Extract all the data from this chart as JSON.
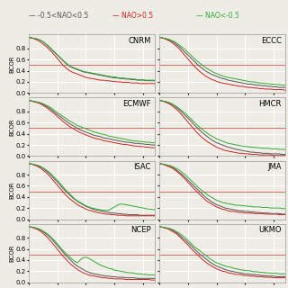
{
  "models": [
    "CNRM",
    "ECCC",
    "ECMWF",
    "HMCR",
    "ISAC",
    "JMA",
    "NCEP",
    "UKMO"
  ],
  "legend_labels": [
    "-0.5<NAO<0.5",
    "NAO>0.5",
    "NAO<-0.5"
  ],
  "line_colors": [
    "#555555",
    "#cc2222",
    "#33aa33"
  ],
  "ylabel": "BCOR",
  "ylim": [
    0.0,
    1.0
  ],
  "yticks": [
    0.0,
    0.2,
    0.4,
    0.6,
    0.8
  ],
  "ref_line_y": 0.5,
  "ref_line_color": "#cc3333",
  "lead_times": [
    0,
    1,
    2,
    3,
    4,
    5,
    6,
    7,
    8,
    9,
    10,
    11,
    12,
    13,
    14,
    15,
    16,
    17,
    18,
    19,
    20,
    21,
    22,
    23,
    24,
    25,
    26,
    27,
    28,
    29,
    30,
    31,
    32,
    33,
    34,
    35,
    36,
    37,
    38,
    39,
    40,
    41,
    42,
    43,
    44
  ],
  "curves": {
    "CNRM": {
      "black": [
        1.0,
        0.99,
        0.98,
        0.97,
        0.95,
        0.92,
        0.88,
        0.83,
        0.78,
        0.73,
        0.68,
        0.63,
        0.58,
        0.53,
        0.49,
        0.46,
        0.44,
        0.42,
        0.4,
        0.38,
        0.37,
        0.36,
        0.35,
        0.34,
        0.33,
        0.32,
        0.31,
        0.3,
        0.29,
        0.28,
        0.27,
        0.27,
        0.26,
        0.26,
        0.25,
        0.25,
        0.24,
        0.24,
        0.23,
        0.23,
        0.23,
        0.22,
        0.22,
        0.22,
        0.22
      ],
      "red": [
        1.0,
        0.99,
        0.97,
        0.95,
        0.92,
        0.88,
        0.84,
        0.79,
        0.74,
        0.68,
        0.62,
        0.56,
        0.5,
        0.45,
        0.41,
        0.38,
        0.36,
        0.34,
        0.32,
        0.3,
        0.28,
        0.27,
        0.26,
        0.25,
        0.24,
        0.23,
        0.23,
        0.22,
        0.22,
        0.21,
        0.21,
        0.2,
        0.2,
        0.19,
        0.19,
        0.19,
        0.18,
        0.18,
        0.18,
        0.17,
        0.17,
        0.17,
        0.17,
        0.17,
        0.17
      ],
      "green": [
        1.0,
        0.99,
        0.98,
        0.97,
        0.95,
        0.92,
        0.88,
        0.84,
        0.79,
        0.74,
        0.69,
        0.64,
        0.59,
        0.54,
        0.5,
        0.47,
        0.45,
        0.43,
        0.41,
        0.39,
        0.38,
        0.37,
        0.36,
        0.35,
        0.34,
        0.33,
        0.32,
        0.31,
        0.3,
        0.29,
        0.29,
        0.28,
        0.27,
        0.27,
        0.26,
        0.26,
        0.25,
        0.25,
        0.24,
        0.24,
        0.24,
        0.23,
        0.23,
        0.23,
        0.23
      ]
    },
    "ECCC": {
      "black": [
        1.0,
        0.99,
        0.98,
        0.96,
        0.94,
        0.91,
        0.87,
        0.83,
        0.78,
        0.73,
        0.68,
        0.63,
        0.58,
        0.53,
        0.48,
        0.44,
        0.4,
        0.37,
        0.34,
        0.32,
        0.3,
        0.28,
        0.26,
        0.25,
        0.23,
        0.22,
        0.21,
        0.2,
        0.19,
        0.18,
        0.17,
        0.16,
        0.16,
        0.15,
        0.14,
        0.14,
        0.13,
        0.13,
        0.12,
        0.12,
        0.11,
        0.11,
        0.1,
        0.1,
        0.1
      ],
      "red": [
        1.0,
        0.99,
        0.97,
        0.95,
        0.92,
        0.88,
        0.84,
        0.79,
        0.73,
        0.67,
        0.61,
        0.55,
        0.49,
        0.44,
        0.39,
        0.35,
        0.31,
        0.28,
        0.25,
        0.23,
        0.21,
        0.19,
        0.18,
        0.17,
        0.16,
        0.15,
        0.14,
        0.13,
        0.12,
        0.12,
        0.11,
        0.1,
        0.1,
        0.09,
        0.09,
        0.08,
        0.08,
        0.07,
        0.07,
        0.07,
        0.06,
        0.06,
        0.06,
        0.06,
        0.05
      ],
      "green": [
        1.0,
        0.99,
        0.98,
        0.97,
        0.95,
        0.93,
        0.9,
        0.86,
        0.82,
        0.78,
        0.73,
        0.68,
        0.63,
        0.58,
        0.54,
        0.5,
        0.46,
        0.43,
        0.4,
        0.37,
        0.35,
        0.33,
        0.31,
        0.29,
        0.28,
        0.27,
        0.26,
        0.25,
        0.24,
        0.23,
        0.22,
        0.21,
        0.2,
        0.2,
        0.19,
        0.18,
        0.18,
        0.17,
        0.17,
        0.16,
        0.16,
        0.15,
        0.15,
        0.14,
        0.14
      ]
    },
    "ECMWF": {
      "black": [
        1.0,
        0.99,
        0.98,
        0.97,
        0.95,
        0.93,
        0.9,
        0.87,
        0.83,
        0.79,
        0.75,
        0.71,
        0.67,
        0.63,
        0.59,
        0.56,
        0.53,
        0.5,
        0.47,
        0.45,
        0.43,
        0.41,
        0.39,
        0.37,
        0.36,
        0.35,
        0.33,
        0.32,
        0.31,
        0.3,
        0.29,
        0.28,
        0.27,
        0.26,
        0.25,
        0.25,
        0.24,
        0.23,
        0.23,
        0.22,
        0.22,
        0.21,
        0.21,
        0.2,
        0.2
      ],
      "red": [
        1.0,
        0.99,
        0.97,
        0.96,
        0.94,
        0.91,
        0.88,
        0.84,
        0.8,
        0.76,
        0.71,
        0.67,
        0.62,
        0.58,
        0.54,
        0.51,
        0.48,
        0.45,
        0.42,
        0.4,
        0.38,
        0.36,
        0.34,
        0.32,
        0.31,
        0.3,
        0.28,
        0.27,
        0.26,
        0.25,
        0.24,
        0.23,
        0.22,
        0.21,
        0.21,
        0.2,
        0.19,
        0.18,
        0.18,
        0.17,
        0.17,
        0.16,
        0.16,
        0.15,
        0.15
      ],
      "green": [
        1.0,
        0.99,
        0.98,
        0.97,
        0.96,
        0.94,
        0.92,
        0.89,
        0.86,
        0.82,
        0.78,
        0.75,
        0.71,
        0.68,
        0.64,
        0.61,
        0.58,
        0.55,
        0.53,
        0.51,
        0.49,
        0.47,
        0.45,
        0.43,
        0.42,
        0.4,
        0.39,
        0.38,
        0.36,
        0.35,
        0.34,
        0.33,
        0.32,
        0.31,
        0.3,
        0.29,
        0.28,
        0.27,
        0.27,
        0.26,
        0.26,
        0.25,
        0.25,
        0.24,
        0.24
      ]
    },
    "HMCR": {
      "black": [
        1.0,
        0.99,
        0.98,
        0.96,
        0.94,
        0.91,
        0.87,
        0.83,
        0.78,
        0.73,
        0.68,
        0.63,
        0.57,
        0.52,
        0.47,
        0.42,
        0.38,
        0.34,
        0.3,
        0.27,
        0.24,
        0.22,
        0.2,
        0.18,
        0.16,
        0.15,
        0.13,
        0.12,
        0.11,
        0.1,
        0.09,
        0.08,
        0.07,
        0.07,
        0.06,
        0.06,
        0.05,
        0.05,
        0.05,
        0.04,
        0.04,
        0.04,
        0.04,
        0.03,
        0.03
      ],
      "red": [
        1.0,
        0.99,
        0.97,
        0.95,
        0.92,
        0.88,
        0.84,
        0.79,
        0.73,
        0.67,
        0.61,
        0.55,
        0.49,
        0.43,
        0.38,
        0.33,
        0.29,
        0.25,
        0.22,
        0.19,
        0.16,
        0.14,
        0.12,
        0.1,
        0.09,
        0.08,
        0.07,
        0.06,
        0.05,
        0.05,
        0.04,
        0.04,
        0.03,
        0.03,
        0.03,
        0.02,
        0.02,
        0.02,
        0.02,
        0.02,
        0.01,
        0.01,
        0.01,
        0.01,
        0.01
      ],
      "green": [
        1.0,
        0.99,
        0.98,
        0.97,
        0.95,
        0.92,
        0.89,
        0.85,
        0.81,
        0.77,
        0.72,
        0.67,
        0.62,
        0.57,
        0.52,
        0.48,
        0.44,
        0.4,
        0.37,
        0.34,
        0.31,
        0.29,
        0.27,
        0.25,
        0.23,
        0.22,
        0.21,
        0.2,
        0.19,
        0.18,
        0.17,
        0.17,
        0.16,
        0.16,
        0.15,
        0.15,
        0.14,
        0.14,
        0.14,
        0.13,
        0.13,
        0.13,
        0.12,
        0.12,
        0.12
      ]
    },
    "ISAC": {
      "black": [
        1.0,
        0.99,
        0.98,
        0.96,
        0.94,
        0.91,
        0.87,
        0.83,
        0.78,
        0.72,
        0.67,
        0.61,
        0.55,
        0.5,
        0.45,
        0.4,
        0.36,
        0.32,
        0.29,
        0.26,
        0.23,
        0.21,
        0.19,
        0.17,
        0.16,
        0.15,
        0.14,
        0.13,
        0.12,
        0.11,
        0.11,
        0.1,
        0.1,
        0.09,
        0.09,
        0.08,
        0.08,
        0.08,
        0.08,
        0.07,
        0.07,
        0.07,
        0.07,
        0.07,
        0.07
      ],
      "red": [
        1.0,
        0.99,
        0.97,
        0.95,
        0.92,
        0.88,
        0.84,
        0.79,
        0.73,
        0.67,
        0.61,
        0.55,
        0.49,
        0.43,
        0.38,
        0.34,
        0.3,
        0.26,
        0.23,
        0.21,
        0.18,
        0.16,
        0.15,
        0.13,
        0.12,
        0.11,
        0.1,
        0.09,
        0.09,
        0.08,
        0.08,
        0.07,
        0.07,
        0.07,
        0.06,
        0.06,
        0.06,
        0.06,
        0.06,
        0.06,
        0.06,
        0.06,
        0.06,
        0.06,
        0.06
      ],
      "green": [
        1.0,
        0.99,
        0.98,
        0.97,
        0.95,
        0.92,
        0.89,
        0.85,
        0.8,
        0.75,
        0.7,
        0.64,
        0.58,
        0.52,
        0.47,
        0.42,
        0.37,
        0.33,
        0.3,
        0.27,
        0.24,
        0.22,
        0.2,
        0.19,
        0.18,
        0.17,
        0.16,
        0.16,
        0.16,
        0.19,
        0.22,
        0.25,
        0.27,
        0.27,
        0.26,
        0.25,
        0.24,
        0.23,
        0.22,
        0.21,
        0.2,
        0.19,
        0.18,
        0.18,
        0.17
      ]
    },
    "JMA": {
      "black": [
        1.0,
        0.99,
        0.98,
        0.96,
        0.94,
        0.92,
        0.88,
        0.84,
        0.8,
        0.75,
        0.7,
        0.65,
        0.6,
        0.55,
        0.5,
        0.45,
        0.4,
        0.36,
        0.32,
        0.29,
        0.26,
        0.24,
        0.22,
        0.2,
        0.19,
        0.18,
        0.17,
        0.16,
        0.15,
        0.15,
        0.14,
        0.14,
        0.13,
        0.13,
        0.12,
        0.12,
        0.11,
        0.11,
        0.11,
        0.1,
        0.1,
        0.1,
        0.1,
        0.09,
        0.09
      ],
      "red": [
        1.0,
        0.99,
        0.97,
        0.95,
        0.93,
        0.9,
        0.86,
        0.82,
        0.77,
        0.72,
        0.66,
        0.61,
        0.55,
        0.5,
        0.45,
        0.4,
        0.35,
        0.31,
        0.28,
        0.25,
        0.22,
        0.2,
        0.18,
        0.17,
        0.15,
        0.14,
        0.14,
        0.13,
        0.12,
        0.12,
        0.11,
        0.11,
        0.11,
        0.1,
        0.1,
        0.1,
        0.1,
        0.09,
        0.09,
        0.09,
        0.09,
        0.09,
        0.08,
        0.08,
        0.08
      ],
      "green": [
        1.0,
        0.99,
        0.98,
        0.97,
        0.96,
        0.93,
        0.91,
        0.88,
        0.84,
        0.8,
        0.75,
        0.7,
        0.65,
        0.6,
        0.55,
        0.51,
        0.47,
        0.43,
        0.4,
        0.37,
        0.34,
        0.32,
        0.3,
        0.29,
        0.28,
        0.27,
        0.26,
        0.25,
        0.25,
        0.24,
        0.24,
        0.23,
        0.23,
        0.22,
        0.22,
        0.22,
        0.21,
        0.21,
        0.21,
        0.2,
        0.2,
        0.2,
        0.2,
        0.19,
        0.19
      ]
    },
    "NCEP": {
      "black": [
        1.0,
        0.99,
        0.98,
        0.96,
        0.94,
        0.91,
        0.87,
        0.83,
        0.78,
        0.72,
        0.66,
        0.6,
        0.54,
        0.48,
        0.43,
        0.38,
        0.33,
        0.29,
        0.26,
        0.23,
        0.2,
        0.18,
        0.16,
        0.15,
        0.14,
        0.13,
        0.12,
        0.11,
        0.11,
        0.1,
        0.1,
        0.09,
        0.09,
        0.09,
        0.08,
        0.08,
        0.08,
        0.08,
        0.07,
        0.07,
        0.07,
        0.07,
        0.07,
        0.07,
        0.07
      ],
      "red": [
        1.0,
        0.99,
        0.97,
        0.95,
        0.92,
        0.88,
        0.83,
        0.78,
        0.72,
        0.66,
        0.59,
        0.53,
        0.47,
        0.41,
        0.36,
        0.31,
        0.27,
        0.23,
        0.2,
        0.17,
        0.15,
        0.13,
        0.12,
        0.11,
        0.1,
        0.09,
        0.08,
        0.08,
        0.07,
        0.07,
        0.06,
        0.06,
        0.06,
        0.06,
        0.05,
        0.05,
        0.05,
        0.05,
        0.05,
        0.05,
        0.05,
        0.05,
        0.05,
        0.04,
        0.04
      ],
      "green": [
        1.0,
        0.99,
        0.98,
        0.97,
        0.95,
        0.92,
        0.89,
        0.85,
        0.8,
        0.75,
        0.69,
        0.63,
        0.57,
        0.52,
        0.47,
        0.42,
        0.38,
        0.35,
        0.4,
        0.44,
        0.45,
        0.43,
        0.4,
        0.37,
        0.34,
        0.31,
        0.29,
        0.27,
        0.25,
        0.24,
        0.22,
        0.21,
        0.2,
        0.19,
        0.18,
        0.17,
        0.17,
        0.16,
        0.15,
        0.15,
        0.14,
        0.14,
        0.13,
        0.13,
        0.13
      ]
    },
    "UKMO": {
      "black": [
        1.0,
        0.99,
        0.98,
        0.97,
        0.95,
        0.92,
        0.89,
        0.85,
        0.8,
        0.76,
        0.71,
        0.66,
        0.61,
        0.56,
        0.51,
        0.47,
        0.43,
        0.39,
        0.35,
        0.32,
        0.29,
        0.27,
        0.25,
        0.23,
        0.21,
        0.2,
        0.19,
        0.18,
        0.17,
        0.16,
        0.15,
        0.15,
        0.14,
        0.14,
        0.13,
        0.13,
        0.12,
        0.12,
        0.11,
        0.11,
        0.11,
        0.1,
        0.1,
        0.1,
        0.1
      ],
      "red": [
        1.0,
        0.99,
        0.97,
        0.96,
        0.93,
        0.9,
        0.87,
        0.82,
        0.77,
        0.72,
        0.67,
        0.61,
        0.56,
        0.51,
        0.46,
        0.41,
        0.37,
        0.33,
        0.3,
        0.27,
        0.24,
        0.22,
        0.2,
        0.19,
        0.17,
        0.16,
        0.15,
        0.14,
        0.14,
        0.13,
        0.12,
        0.12,
        0.11,
        0.11,
        0.1,
        0.1,
        0.1,
        0.09,
        0.09,
        0.09,
        0.08,
        0.08,
        0.08,
        0.08,
        0.08
      ],
      "green": [
        1.0,
        0.99,
        0.98,
        0.97,
        0.96,
        0.94,
        0.91,
        0.88,
        0.84,
        0.8,
        0.75,
        0.7,
        0.65,
        0.61,
        0.57,
        0.53,
        0.49,
        0.45,
        0.41,
        0.38,
        0.35,
        0.33,
        0.31,
        0.29,
        0.28,
        0.27,
        0.25,
        0.24,
        0.23,
        0.22,
        0.21,
        0.21,
        0.2,
        0.19,
        0.19,
        0.18,
        0.18,
        0.17,
        0.17,
        0.16,
        0.16,
        0.16,
        0.15,
        0.15,
        0.15
      ]
    }
  },
  "bg_color": "#eeede5",
  "grid_color": "#ffffff",
  "label_fontsize": 5,
  "tick_fontsize": 5,
  "model_fontsize": 6,
  "legend_fontsize": 5.5
}
